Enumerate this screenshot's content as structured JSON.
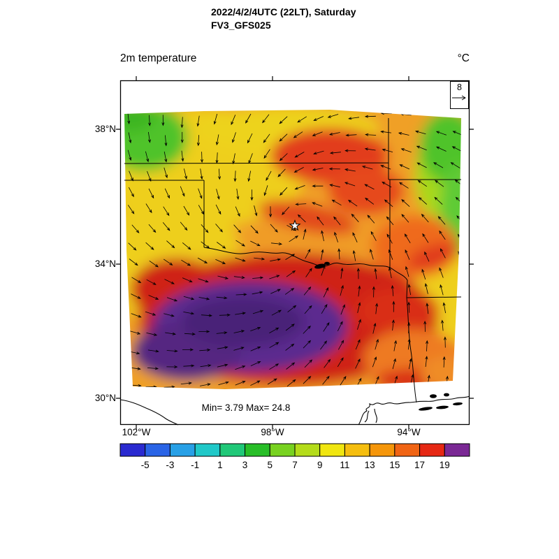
{
  "header": {
    "datetime": "2022/4/2/4UTC (22LT), Saturday",
    "model": "FV3_GFS025"
  },
  "plot": {
    "variable": "2m temperature",
    "units": "°C",
    "minmax": "Min= 3.79 Max= 24.8",
    "wind_reference": "8"
  },
  "axes": {
    "lat": [
      "38°N",
      "34°N",
      "30°N"
    ],
    "lon": [
      "102°W",
      "98°W",
      "94°W"
    ]
  },
  "colorbar": {
    "tick_labels": [
      "-5",
      "-3",
      "-1",
      "1",
      "3",
      "5",
      "7",
      "9",
      "11",
      "13",
      "15",
      "17",
      "19"
    ],
    "colors": [
      "#2a2ad0",
      "#2a64e6",
      "#28a0e6",
      "#20c8c8",
      "#20c878",
      "#28be28",
      "#78d220",
      "#b4dc1a",
      "#f0e610",
      "#f5be0f",
      "#f5960a",
      "#f06414",
      "#e62814",
      "#7a2894"
    ]
  },
  "chart_data": {
    "type": "heatmap",
    "title": "2m temperature",
    "units": "°C",
    "valid_time": "2022/4/2/4UTC (22LT), Saturday",
    "model_run": "FV3_GFS025",
    "field_min": 3.79,
    "field_max": 24.8,
    "color_levels": [
      -5,
      -3,
      -1,
      1,
      3,
      5,
      7,
      9,
      11,
      13,
      15,
      17,
      19
    ],
    "palette": [
      "#2a2ad0",
      "#2a64e6",
      "#28a0e6",
      "#20c8c8",
      "#20c878",
      "#28be28",
      "#78d220",
      "#b4dc1a",
      "#f0e610",
      "#f5be0f",
      "#f5960a",
      "#f06414",
      "#e62814",
      "#7a2894"
    ],
    "y_ticks": [
      "38°N",
      "34°N",
      "30°N"
    ],
    "x_ticks": [
      "102°W",
      "98°W",
      "94°W"
    ],
    "overlay": {
      "type": "wind vectors (cyclonic spiral around star marker)",
      "reference_value": 8
    },
    "region_hint": "South-central United States (Oklahoma / Texas / Gulf coast); star marker in central Oklahoma; lake blob near Red River",
    "notable": "Warmest air (>19, purple) over interior south Texas surrounded by red (17-19); yellow/orange (9-17) across Oklahoma; cooler green patches (3-9) in far northwest and northeast corners"
  }
}
